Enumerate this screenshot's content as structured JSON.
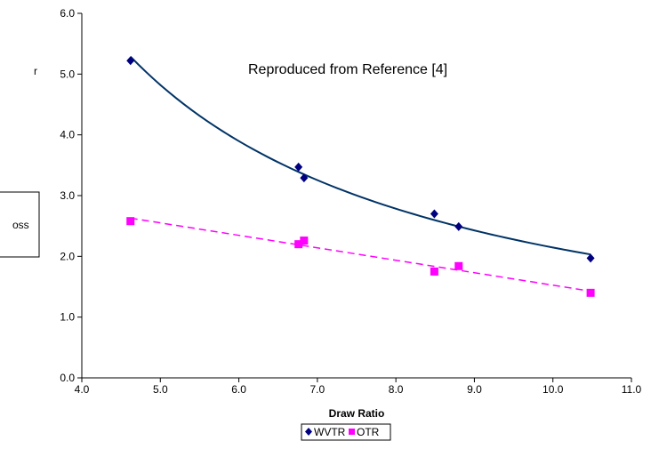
{
  "chart_data": {
    "type": "scatter",
    "title": "",
    "xlabel": "Draw Ratio",
    "ylabel": "",
    "xlim": [
      4.0,
      11.0
    ],
    "ylim": [
      0.0,
      6.0
    ],
    "xticks": [
      "4.0",
      "5.0",
      "6.0",
      "7.0",
      "8.0",
      "9.0",
      "10.0",
      "11.0"
    ],
    "yticks": [
      "0.0",
      "1.0",
      "2.0",
      "3.0",
      "4.0",
      "5.0",
      "6.0"
    ],
    "grid": false,
    "legend_position": "bottom",
    "annotation": "Reproduced from Reference [4]",
    "clipped_ylabel_fragment": "r",
    "clipped_box_text": "oss",
    "series": [
      {
        "name": "WVTR",
        "marker": "diamond",
        "color": "#000080",
        "trendline": "power",
        "trend_color": "#003366",
        "x": [
          4.62,
          6.76,
          6.83,
          8.49,
          8.8,
          10.48
        ],
        "y": [
          5.22,
          3.47,
          3.29,
          2.7,
          2.49,
          1.97
        ]
      },
      {
        "name": "OTR",
        "marker": "square",
        "color": "#ff00ff",
        "trendline": "linear-dashed",
        "trend_color": "#ff00ff",
        "x": [
          4.62,
          6.76,
          6.83,
          8.49,
          8.8,
          10.48
        ],
        "y": [
          2.58,
          2.2,
          2.26,
          1.75,
          1.84,
          1.4
        ]
      }
    ]
  }
}
